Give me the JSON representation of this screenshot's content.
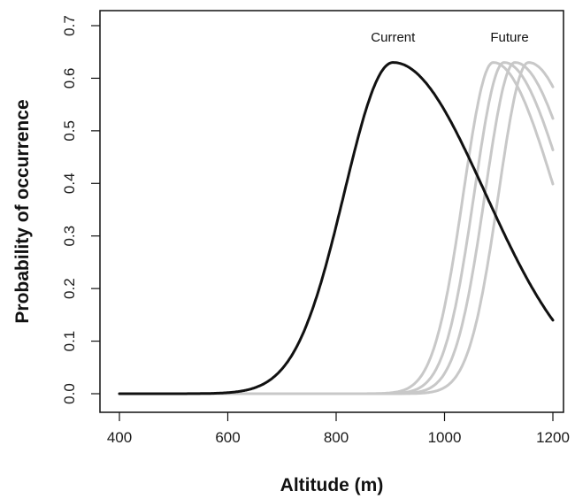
{
  "chart_data": {
    "type": "line",
    "xlabel": "Altitude (m)",
    "ylabel": "Probability of occurrence",
    "xlim": [
      400,
      1200
    ],
    "ylim": [
      0,
      0.7
    ],
    "x_ticks": [
      400,
      600,
      800,
      1000,
      1200
    ],
    "y_ticks": [
      "0.0",
      "0.1",
      "0.2",
      "0.3",
      "0.4",
      "0.5",
      "0.6",
      "0.7"
    ],
    "grid": false,
    "legend": "none",
    "annotations": [
      {
        "text": "Current",
        "x": 905,
        "y": 0.67
      },
      {
        "text": "Future",
        "x": 1120,
        "y": 0.67
      }
    ],
    "series": [
      {
        "color": "#111111",
        "peak_x": 905,
        "peak_y": 0.63,
        "sigma_left": 90,
        "sigma_right": 170
      },
      {
        "color": "#c8c8c8",
        "peak_x": 1090,
        "peak_y": 0.63,
        "sigma_left": 55,
        "sigma_right": 115
      },
      {
        "color": "#c8c8c8",
        "peak_x": 1110,
        "peak_y": 0.63,
        "sigma_left": 55,
        "sigma_right": 115
      },
      {
        "color": "#c8c8c8",
        "peak_x": 1130,
        "peak_y": 0.63,
        "sigma_left": 55,
        "sigma_right": 115
      },
      {
        "color": "#c8c8c8",
        "peak_x": 1155,
        "peak_y": 0.63,
        "sigma_left": 55,
        "sigma_right": 115
      }
    ]
  }
}
